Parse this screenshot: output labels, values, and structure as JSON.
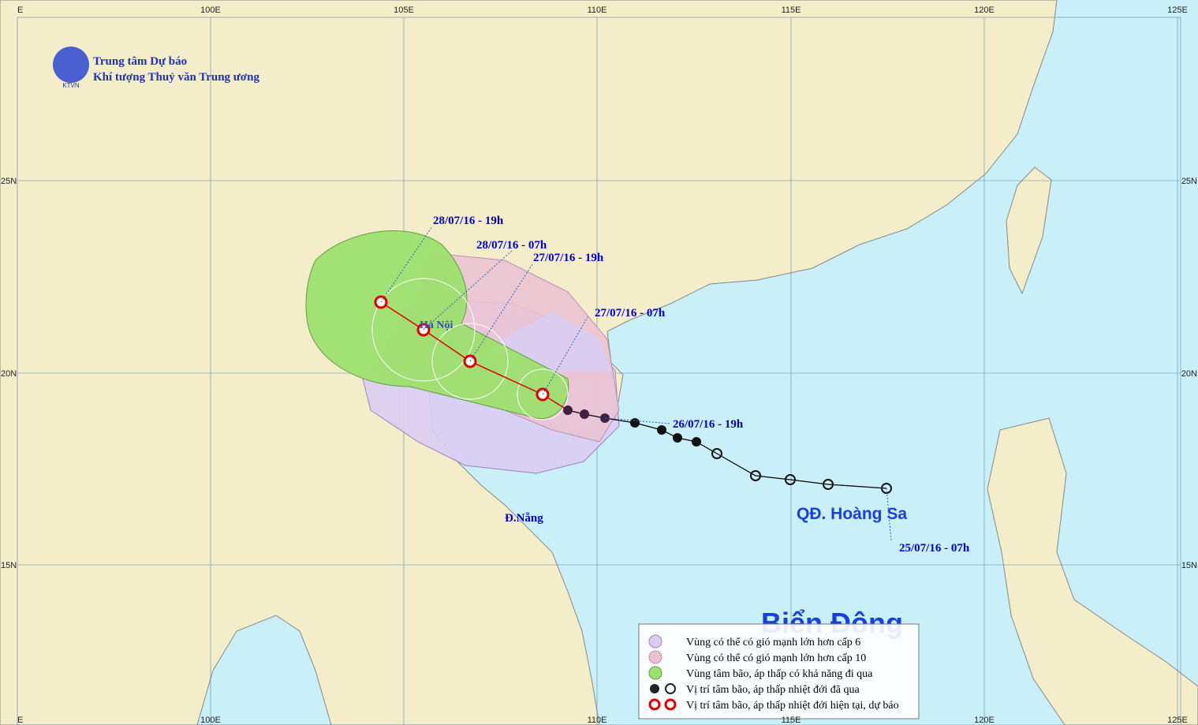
{
  "header": {
    "line1": "Trung tâm Dự báo",
    "line2": "Khí tượng Thuỷ văn Trung ương",
    "logo": "KTVN"
  },
  "graticule": {
    "top": [
      "E",
      "100E",
      "105E",
      "110E",
      "115E",
      "120E",
      "125E"
    ],
    "bottom": [
      "E",
      "100E",
      "110E",
      "115E",
      "120E",
      "125E"
    ],
    "left": [
      "25N",
      "20N",
      "15N"
    ],
    "right": [
      "25N",
      "20N",
      "15N"
    ]
  },
  "track_labels": [
    "28/07/16 - 19h",
    "28/07/16 - 07h",
    "27/07/16 - 19h",
    "27/07/16 - 07h",
    "26/07/16 - 19h",
    "25/07/16 - 07h"
  ],
  "places": {
    "hanoi": "Hà Nội",
    "danang": "Đ.Nẵng",
    "paracel": "QĐ. Hoàng Sa",
    "sea": "Biển Đông"
  },
  "legend": [
    "Vùng có thể có gió mạnh lớn hơn cấp 6",
    "Vùng có thể có gió mạnh lớn hơn cấp 10",
    "Vùng tâm bão, áp thấp có khả năng đi qua",
    "Vị trí tâm bão, áp thấp nhiệt đới đã qua",
    "Vị trí tâm bão, áp thấp nhiệt đới hiện tại, dự báo"
  ]
}
